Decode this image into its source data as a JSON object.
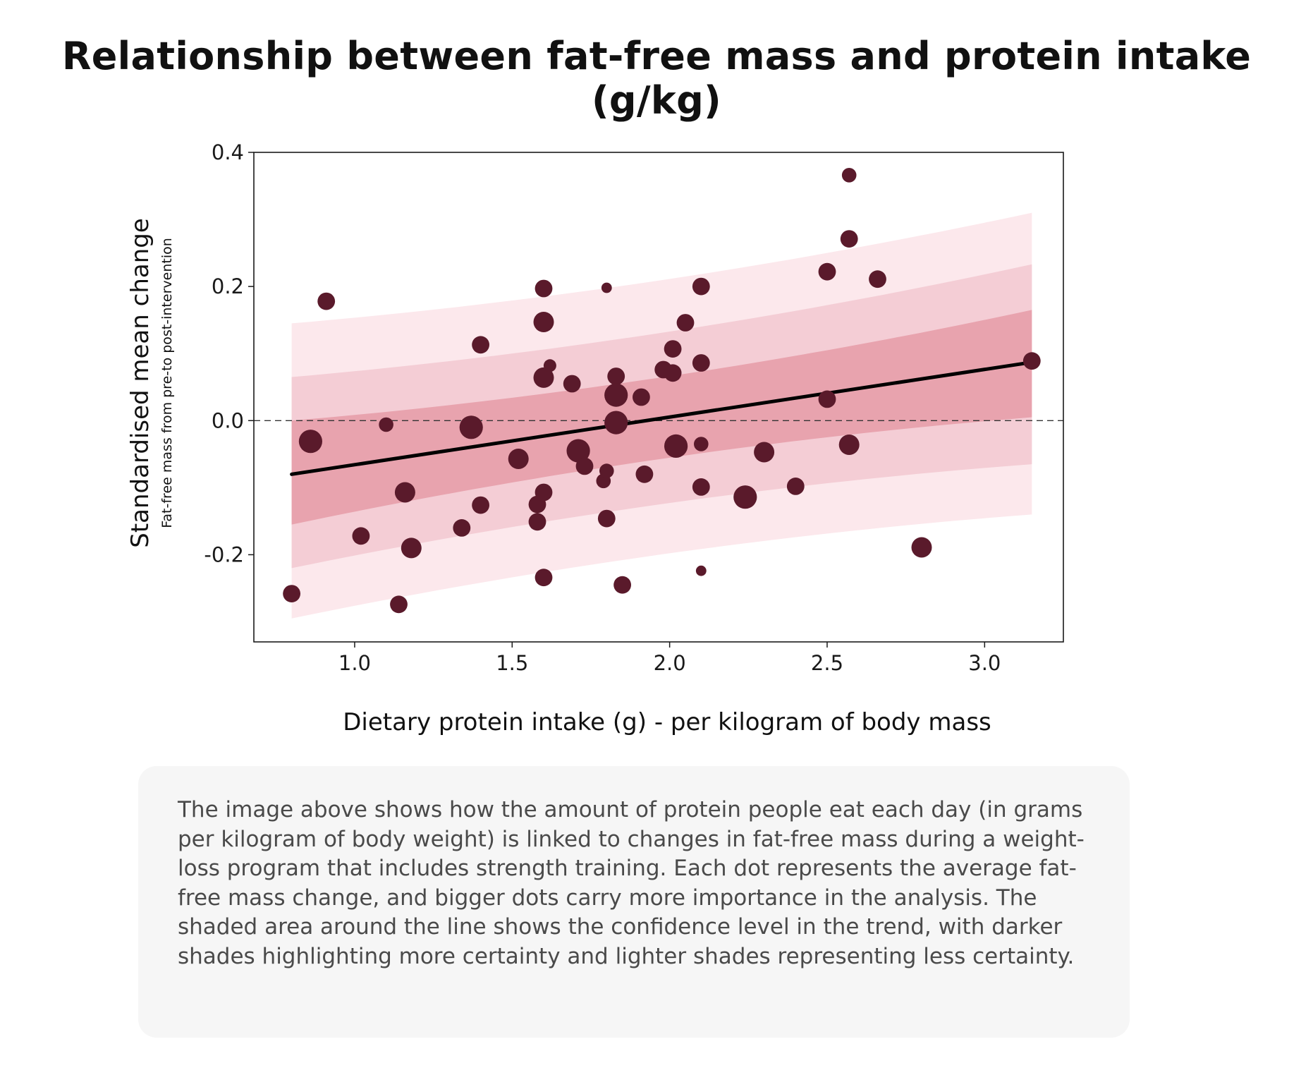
{
  "page": {
    "title": "Relationship between fat-free mass and protein intake (g/kg)",
    "description": "The image above shows how the amount of protein people eat each day (in grams per kilogram of body weight) is linked to changes in fat-free mass during a weight-loss program that includes strength training. Each dot represents the average fat-free mass change, and bigger dots carry more importance in the analysis. The shaded area around the line shows the confidence level in the trend, with darker shades highlighting more certainty and lighter shades representing less certainty."
  },
  "chart_data": {
    "type": "scatter",
    "title": "Relationship between fat-free mass and protein intake (g/kg)",
    "xlabel": "Dietary protein intake (g) - per kilogram of body mass",
    "ylabel": "Standardised mean change",
    "ylabel_sub": "Fat-free mass from pre-to post-intervention",
    "xlim": [
      0.68,
      3.25
    ],
    "ylim": [
      -0.33,
      0.4
    ],
    "x_ticks": [
      1.0,
      1.5,
      2.0,
      2.5,
      3.0
    ],
    "x_tick_labels": [
      "1.0",
      "1.5",
      "2.0",
      "2.5",
      "3.0"
    ],
    "y_ticks": [
      0.4,
      0.2,
      0.0,
      -0.2
    ],
    "y_tick_labels": [
      "0.4",
      "0.2",
      "0.0",
      "-0.2"
    ],
    "grid": false,
    "reference_line": {
      "y": 0.0,
      "style": "dashed",
      "color": "#333333"
    },
    "colors": {
      "points": "#5a1a2b",
      "trend": "#000000",
      "band_inner": "#e8a3ae",
      "band_middle": "#f4cdd5",
      "band_outer": "#fce8ec"
    },
    "trend": {
      "x_start": 0.8,
      "x_end": 3.15,
      "y_start": -0.08,
      "y_end": 0.087,
      "bands": [
        {
          "level": "outer",
          "upper": [
            0.145,
            0.31
          ],
          "lower": [
            -0.295,
            -0.14
          ]
        },
        {
          "level": "middle",
          "upper": [
            0.065,
            0.233
          ],
          "lower": [
            -0.22,
            -0.065
          ]
        },
        {
          "level": "inner",
          "upper": [
            0.0,
            0.165
          ],
          "lower": [
            -0.155,
            0.005
          ]
        }
      ]
    },
    "points": [
      {
        "x": 0.8,
        "y": -0.258,
        "weight": 2
      },
      {
        "x": 0.86,
        "y": -0.031,
        "weight": 3
      },
      {
        "x": 0.91,
        "y": 0.178,
        "weight": 2
      },
      {
        "x": 1.02,
        "y": -0.172,
        "weight": 2
      },
      {
        "x": 1.1,
        "y": -0.006,
        "weight": 1.5
      },
      {
        "x": 1.14,
        "y": -0.274,
        "weight": 2
      },
      {
        "x": 1.16,
        "y": -0.107,
        "weight": 2.5
      },
      {
        "x": 1.18,
        "y": -0.19,
        "weight": 2.5
      },
      {
        "x": 1.34,
        "y": -0.16,
        "weight": 2
      },
      {
        "x": 1.37,
        "y": -0.01,
        "weight": 3
      },
      {
        "x": 1.4,
        "y": 0.113,
        "weight": 2
      },
      {
        "x": 1.4,
        "y": -0.126,
        "weight": 2
      },
      {
        "x": 1.52,
        "y": -0.057,
        "weight": 2.5
      },
      {
        "x": 1.58,
        "y": -0.125,
        "weight": 2
      },
      {
        "x": 1.58,
        "y": -0.151,
        "weight": 2
      },
      {
        "x": 1.6,
        "y": 0.197,
        "weight": 2
      },
      {
        "x": 1.6,
        "y": 0.147,
        "weight": 2.5
      },
      {
        "x": 1.6,
        "y": 0.064,
        "weight": 2.5
      },
      {
        "x": 1.6,
        "y": -0.107,
        "weight": 2
      },
      {
        "x": 1.6,
        "y": -0.234,
        "weight": 2
      },
      {
        "x": 1.62,
        "y": 0.082,
        "weight": 1.2
      },
      {
        "x": 1.69,
        "y": 0.055,
        "weight": 2
      },
      {
        "x": 1.71,
        "y": -0.045,
        "weight": 3
      },
      {
        "x": 1.73,
        "y": -0.068,
        "weight": 2
      },
      {
        "x": 1.79,
        "y": -0.09,
        "weight": 1.5
      },
      {
        "x": 1.8,
        "y": 0.198,
        "weight": 0.8
      },
      {
        "x": 1.8,
        "y": -0.075,
        "weight": 1.5
      },
      {
        "x": 1.8,
        "y": -0.146,
        "weight": 2
      },
      {
        "x": 1.83,
        "y": 0.066,
        "weight": 2
      },
      {
        "x": 1.83,
        "y": 0.038,
        "weight": 3
      },
      {
        "x": 1.83,
        "y": -0.003,
        "weight": 3
      },
      {
        "x": 1.85,
        "y": -0.245,
        "weight": 2
      },
      {
        "x": 1.91,
        "y": 0.035,
        "weight": 2
      },
      {
        "x": 1.92,
        "y": -0.08,
        "weight": 2
      },
      {
        "x": 1.98,
        "y": 0.076,
        "weight": 2
      },
      {
        "x": 2.01,
        "y": 0.107,
        "weight": 2
      },
      {
        "x": 2.01,
        "y": 0.071,
        "weight": 2
      },
      {
        "x": 2.02,
        "y": -0.038,
        "weight": 3
      },
      {
        "x": 2.05,
        "y": 0.146,
        "weight": 2
      },
      {
        "x": 2.1,
        "y": 0.2,
        "weight": 2
      },
      {
        "x": 2.1,
        "y": 0.086,
        "weight": 2
      },
      {
        "x": 2.1,
        "y": -0.035,
        "weight": 1.5
      },
      {
        "x": 2.1,
        "y": -0.099,
        "weight": 2
      },
      {
        "x": 2.1,
        "y": -0.224,
        "weight": 0.8
      },
      {
        "x": 2.24,
        "y": -0.114,
        "weight": 3
      },
      {
        "x": 2.3,
        "y": -0.047,
        "weight": 2.5
      },
      {
        "x": 2.4,
        "y": -0.098,
        "weight": 2
      },
      {
        "x": 2.5,
        "y": 0.222,
        "weight": 2
      },
      {
        "x": 2.5,
        "y": 0.032,
        "weight": 2
      },
      {
        "x": 2.57,
        "y": 0.366,
        "weight": 1.5
      },
      {
        "x": 2.57,
        "y": 0.271,
        "weight": 2
      },
      {
        "x": 2.57,
        "y": -0.036,
        "weight": 2.5
      },
      {
        "x": 2.66,
        "y": 0.211,
        "weight": 2
      },
      {
        "x": 2.8,
        "y": -0.189,
        "weight": 2.5
      },
      {
        "x": 3.15,
        "y": 0.089,
        "weight": 2
      }
    ]
  }
}
